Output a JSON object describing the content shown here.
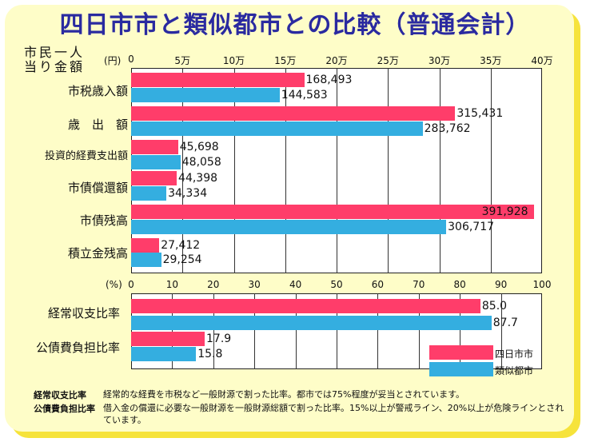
{
  "title": "四日市市と類似都市との比較（普通会計）",
  "y_label_line1": "市民一人",
  "y_label_line2": "当り金額",
  "chart_data": [
    {
      "type": "bar",
      "orientation": "horizontal",
      "unit": "(円)",
      "xlim": [
        0,
        400000
      ],
      "ticks": [
        {
          "value": 0,
          "label": "0"
        },
        {
          "value": 50000,
          "label": "5万"
        },
        {
          "value": 100000,
          "label": "10万"
        },
        {
          "value": 150000,
          "label": "15万"
        },
        {
          "value": 200000,
          "label": "20万"
        },
        {
          "value": 250000,
          "label": "25万"
        },
        {
          "value": 300000,
          "label": "30万"
        },
        {
          "value": 350000,
          "label": "35万"
        },
        {
          "value": 400000,
          "label": "40万"
        }
      ],
      "grid": true,
      "categories": [
        "市税歳入額",
        "歳　出　額",
        "投資的経費支出額",
        "市債償還額",
        "市債残高",
        "積立金残高"
      ],
      "series": [
        {
          "name": "四日市市",
          "values": [
            168493,
            315431,
            45698,
            44398,
            391928,
            27412
          ],
          "labels": [
            "168,493",
            "315,431",
            "45,698",
            "44,398",
            "391,928",
            "27,412"
          ],
          "color": "#ff3d6a"
        },
        {
          "name": "類似都市",
          "values": [
            144583,
            283762,
            48058,
            34334,
            306717,
            29254
          ],
          "labels": [
            "144,583",
            "283,762",
            "48,058",
            "34,334",
            "306,717",
            "29,254"
          ],
          "color": "#34aee0"
        }
      ]
    },
    {
      "type": "bar",
      "orientation": "horizontal",
      "unit": "(%)",
      "xlim": [
        0,
        100
      ],
      "ticks": [
        {
          "value": 0,
          "label": "0"
        },
        {
          "value": 10,
          "label": "10"
        },
        {
          "value": 20,
          "label": "20"
        },
        {
          "value": 30,
          "label": "30"
        },
        {
          "value": 40,
          "label": "40"
        },
        {
          "value": 50,
          "label": "50"
        },
        {
          "value": 60,
          "label": "60"
        },
        {
          "value": 70,
          "label": "70"
        },
        {
          "value": 80,
          "label": "80"
        },
        {
          "value": 90,
          "label": "90"
        },
        {
          "value": 100,
          "label": "100"
        }
      ],
      "grid": true,
      "categories": [
        "経常収支比率",
        "公債費負担比率"
      ],
      "series": [
        {
          "name": "四日市市",
          "values": [
            85.0,
            17.9
          ],
          "labels": [
            "85.0",
            "17.9"
          ],
          "color": "#ff3d6a"
        },
        {
          "name": "類似都市",
          "values": [
            87.7,
            15.8
          ],
          "labels": [
            "87.7",
            "15.8"
          ],
          "color": "#34aee0"
        }
      ],
      "legend": {
        "placement": "bottom-right",
        "entries": [
          "四日市市",
          "類似都市"
        ]
      }
    }
  ],
  "notes": [
    {
      "term": "経常収支比率",
      "text": "経常的な経費を市税など一般財源で割った比率。都市では75%程度が妥当とされています。"
    },
    {
      "term": "公債費負担比率",
      "text": "借入金の償還に必要な一般財源を一般財源総額で割った比率。15%以上が警戒ライン、20%以上が危険ラインとされています。"
    }
  ]
}
